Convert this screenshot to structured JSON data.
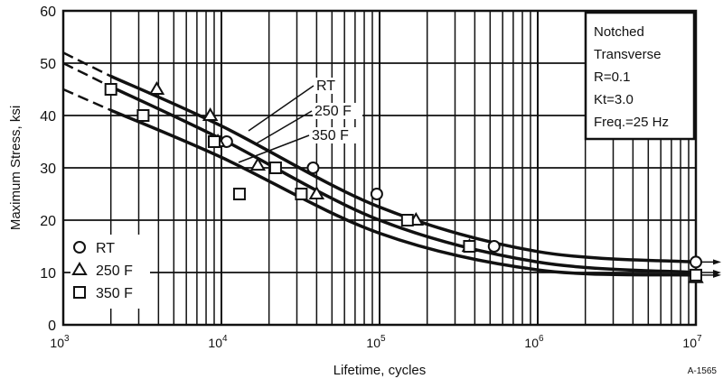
{
  "chart_data": {
    "type": "scatter",
    "xlabel": "Lifetime, cycles",
    "ylabel": "Maximum Stress, ksi",
    "x_scale": "log",
    "xlim": [
      1000,
      10000000
    ],
    "ylim": [
      0,
      60
    ],
    "x_ticks": [
      {
        "base": "10",
        "exp": "3"
      },
      {
        "base": "10",
        "exp": "4"
      },
      {
        "base": "10",
        "exp": "5"
      },
      {
        "base": "10",
        "exp": "6"
      },
      {
        "base": "10",
        "exp": "7"
      }
    ],
    "y_ticks": [
      "0",
      "10",
      "20",
      "30",
      "40",
      "50",
      "60"
    ],
    "grid": true,
    "legend_position": "bottom-left",
    "annotation_box": [
      "Notched",
      "Transverse",
      "R=0.1",
      "Kt=3.0",
      "Freq.=25 Hz"
    ],
    "figure_id": "A-1565",
    "series": [
      {
        "name": "RT",
        "marker": "circle",
        "points": [
          [
            10800,
            35
          ],
          [
            38000,
            30
          ],
          [
            96000,
            25
          ],
          [
            530000,
            15
          ],
          [
            10000000,
            12
          ]
        ],
        "curve": [
          [
            1000,
            52
          ],
          [
            2000,
            47.5
          ],
          [
            10000,
            38
          ],
          [
            100000,
            22.5
          ],
          [
            1000000,
            14
          ],
          [
            10000000,
            12
          ]
        ]
      },
      {
        "name": "250 F",
        "marker": "triangle",
        "points": [
          [
            3900,
            45
          ],
          [
            8500,
            40
          ],
          [
            9500,
            35
          ],
          [
            17000,
            30.5
          ],
          [
            40000,
            25
          ],
          [
            170000,
            20
          ],
          [
            370000,
            15
          ],
          [
            10000000,
            9
          ]
        ],
        "curve": [
          [
            1000,
            50
          ],
          [
            2000,
            45.5
          ],
          [
            10000,
            35.5
          ],
          [
            100000,
            20
          ],
          [
            1000000,
            12
          ],
          [
            10000000,
            10
          ]
        ]
      },
      {
        "name": "350 F",
        "marker": "square",
        "points": [
          [
            2000,
            45
          ],
          [
            3200,
            40
          ],
          [
            9000,
            35
          ],
          [
            22000,
            30
          ],
          [
            13000,
            25
          ],
          [
            32000,
            25
          ],
          [
            150000,
            20
          ],
          [
            370000,
            15
          ],
          [
            10000000,
            9.5
          ]
        ],
        "curve": [
          [
            1000,
            45
          ],
          [
            2000,
            41
          ],
          [
            10000,
            32
          ],
          [
            100000,
            17.5
          ],
          [
            1000000,
            10.5
          ],
          [
            10000000,
            9.5
          ]
        ]
      }
    ],
    "dashed_until": 2000
  }
}
